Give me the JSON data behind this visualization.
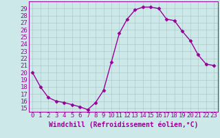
{
  "x": [
    0,
    1,
    2,
    3,
    4,
    5,
    6,
    7,
    8,
    9,
    10,
    11,
    12,
    13,
    14,
    15,
    16,
    17,
    18,
    19,
    20,
    21,
    22,
    23
  ],
  "y": [
    20,
    18,
    16.5,
    16,
    15.8,
    15.5,
    15.2,
    14.8,
    15.8,
    17.5,
    21.5,
    25.5,
    27.5,
    28.8,
    29.2,
    29.2,
    29.0,
    27.5,
    27.3,
    25.8,
    24.5,
    22.5,
    21.2,
    21.0
  ],
  "line_color": "#990099",
  "marker": "D",
  "marker_size": 2.5,
  "bg_color": "#cce8e8",
  "grid_color": "#b0c8c8",
  "xlabel": "Windchill (Refroidissement éolien,°C)",
  "ylabel": "",
  "title": "",
  "xlim": [
    -0.5,
    23.5
  ],
  "ylim": [
    14.5,
    30.0
  ],
  "yticks": [
    15,
    16,
    17,
    18,
    19,
    20,
    21,
    22,
    23,
    24,
    25,
    26,
    27,
    28,
    29
  ],
  "xticks": [
    0,
    1,
    2,
    3,
    4,
    5,
    6,
    7,
    8,
    9,
    10,
    11,
    12,
    13,
    14,
    15,
    16,
    17,
    18,
    19,
    20,
    21,
    22,
    23
  ],
  "tick_color": "#990099",
  "font_color": "#990099",
  "font_size": 6.5,
  "xlabel_fontsize": 7,
  "line_width": 1.0
}
